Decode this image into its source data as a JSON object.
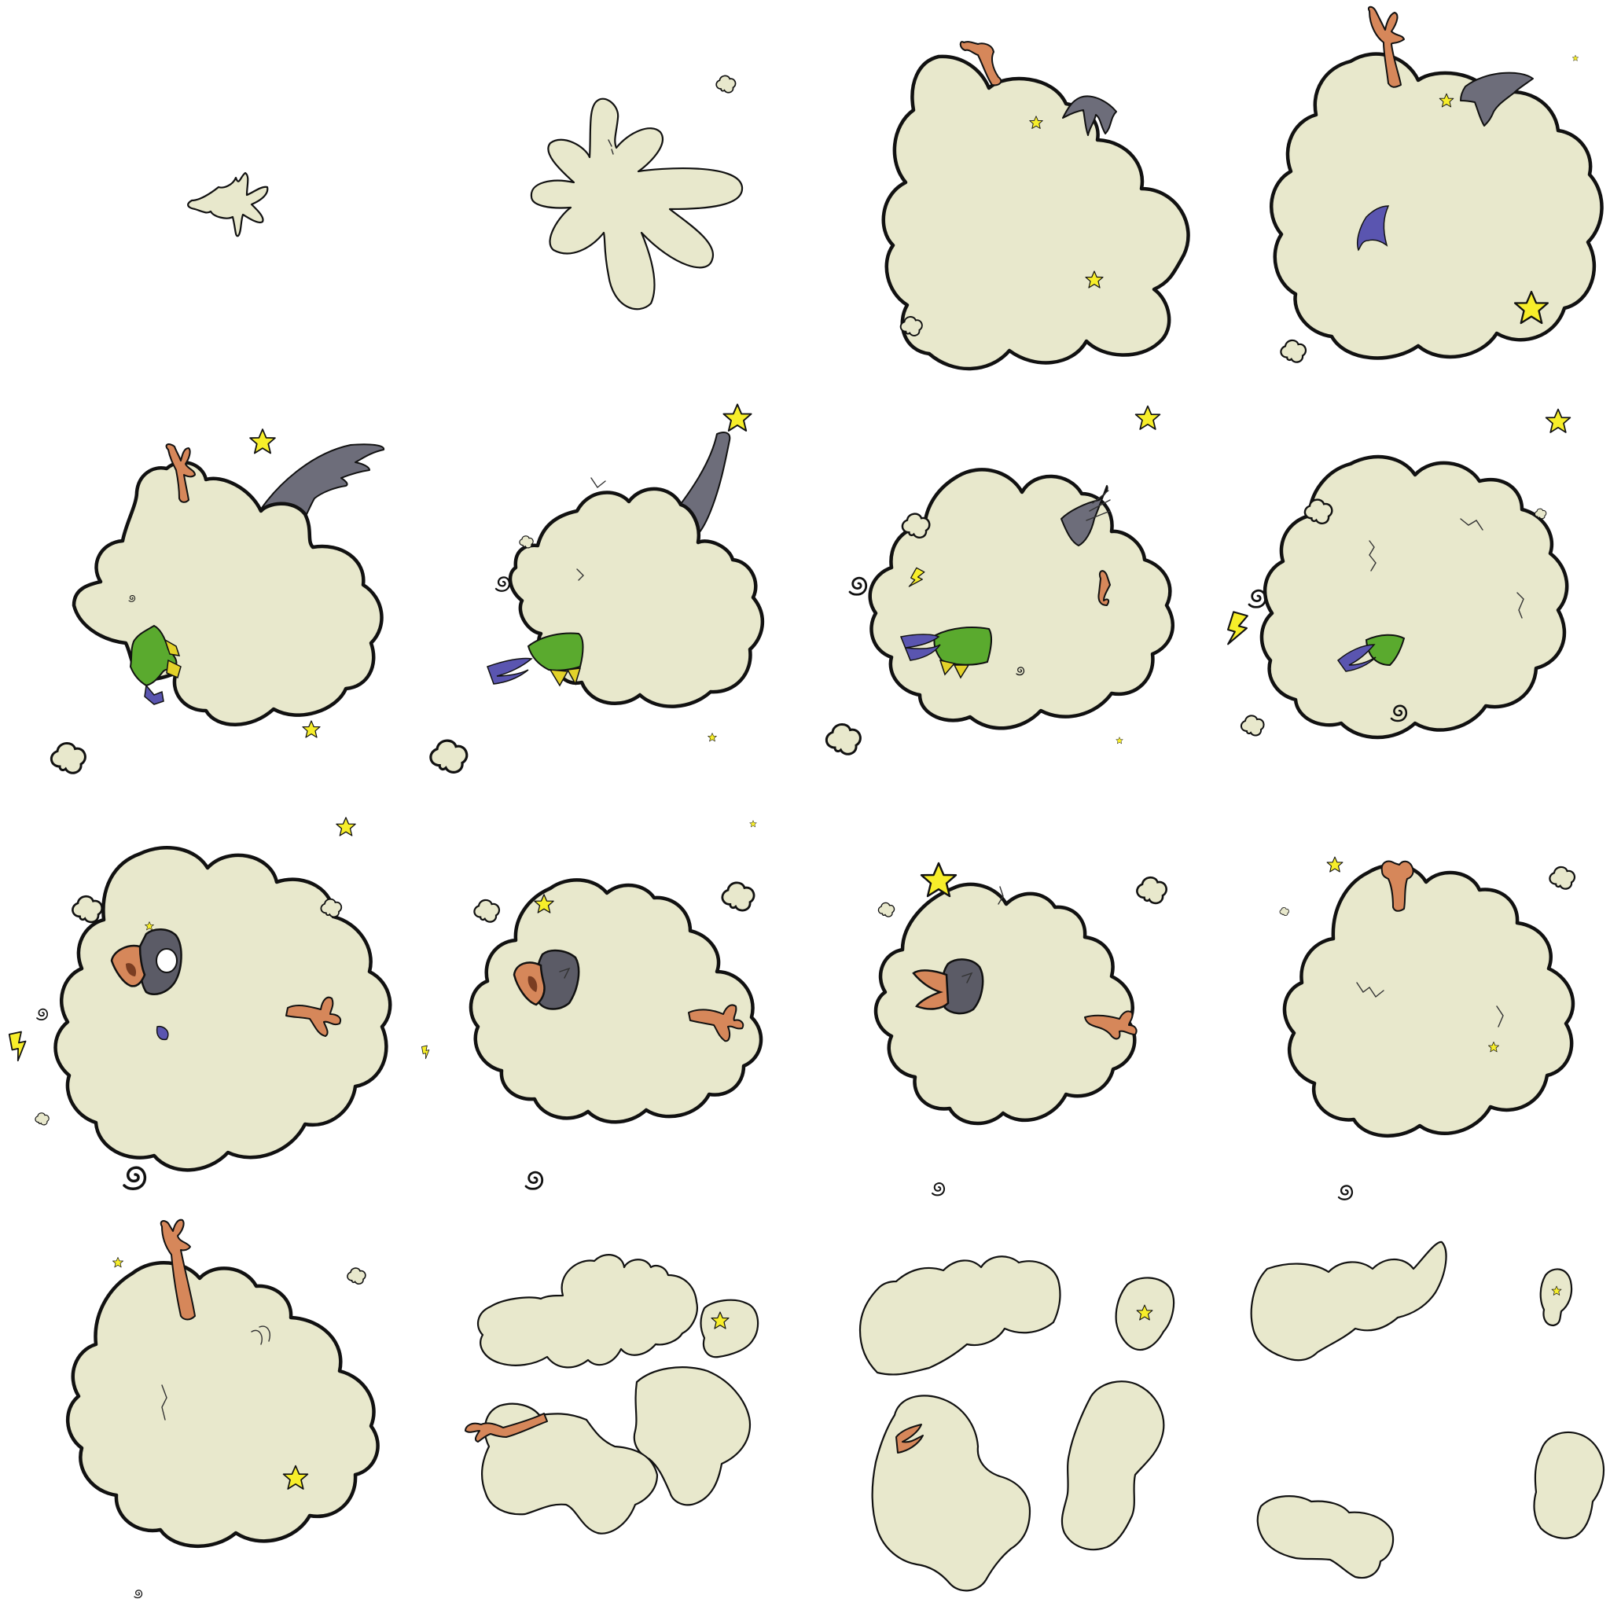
{
  "sprite_sheet": {
    "grid": {
      "rows": 4,
      "columns": 4
    },
    "background": "#ffffff",
    "colors": {
      "cloud": "#e8e8cc",
      "outline": "#111111",
      "star": "#f7ee2a",
      "bird_leg": "#d6875a",
      "bird_wing_gray": "#6d6d7a",
      "parrot_wing_green": "#5aaa2e",
      "parrot_wing_blue": "#5a55b0",
      "parrot_wing_yellow": "#e3d22a",
      "bird_head": "#5b5b66"
    },
    "frames": [
      {
        "index": 1,
        "contents": [
          "small-splat-cloud"
        ]
      },
      {
        "index": 2,
        "contents": [
          "splat-cloud",
          "dust-puff"
        ]
      },
      {
        "index": 3,
        "contents": [
          "fight-cloud",
          "bird-leg",
          "gray-wing",
          "stars",
          "dust-puff"
        ]
      },
      {
        "index": 4,
        "contents": [
          "fight-cloud",
          "bird-leg",
          "gray-wing",
          "blue-feather",
          "stars",
          "dust-puff"
        ]
      },
      {
        "index": 5,
        "contents": [
          "fight-cloud",
          "bird-leg",
          "gray-wing",
          "parrot-wing",
          "stars",
          "dust-puff"
        ]
      },
      {
        "index": 6,
        "contents": [
          "fight-cloud",
          "gray-wing",
          "parrot-wing",
          "star",
          "swirl",
          "dust-puff"
        ]
      },
      {
        "index": 7,
        "contents": [
          "fight-cloud",
          "gray-wing",
          "parrot-wing",
          "bolt",
          "star",
          "swirl",
          "dust-puff"
        ]
      },
      {
        "index": 8,
        "contents": [
          "fight-cloud",
          "parrot-wing",
          "bolt",
          "star",
          "swirl",
          "dust-puff"
        ]
      },
      {
        "index": 9,
        "contents": [
          "fight-cloud",
          "bird-head-open-beak",
          "bird-leg",
          "bolt",
          "stars",
          "swirl"
        ]
      },
      {
        "index": 10,
        "contents": [
          "fight-cloud",
          "bird-head-open-beak",
          "bird-leg",
          "star",
          "swirl",
          "dust-puff"
        ]
      },
      {
        "index": 11,
        "contents": [
          "fight-cloud",
          "bird-head-open-beak",
          "bird-leg",
          "star",
          "swirl",
          "dust-puff"
        ]
      },
      {
        "index": 12,
        "contents": [
          "fight-cloud",
          "bird-leg",
          "star",
          "swirl",
          "dust-puff"
        ]
      },
      {
        "index": 13,
        "contents": [
          "fight-cloud",
          "bird-leg",
          "stars",
          "swirl",
          "dust-puff"
        ]
      },
      {
        "index": 14,
        "contents": [
          "dispersing-clouds",
          "bird-leg",
          "star"
        ]
      },
      {
        "index": 15,
        "contents": [
          "dispersing-clouds",
          "bird-foot",
          "star"
        ]
      },
      {
        "index": 16,
        "contents": [
          "dispersing-clouds",
          "star"
        ]
      }
    ]
  }
}
